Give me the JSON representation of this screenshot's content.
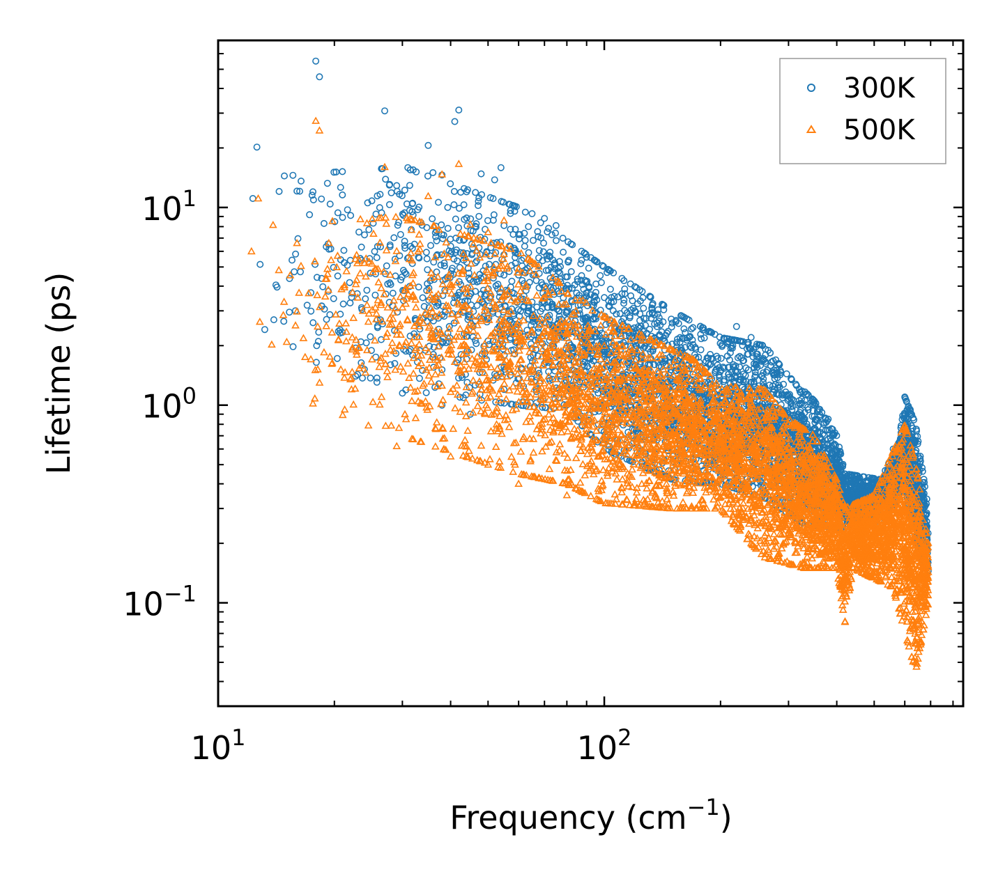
{
  "chart_data": {
    "type": "scatter",
    "title": "",
    "xlabel": "Frequency (cm",
    "xlabel_sup": "−1",
    "xlabel_end": ")",
    "ylabel": "Lifetime (ps)",
    "xscale": "log",
    "yscale": "log",
    "xlim": [
      10,
      850
    ],
    "ylim": [
      0.03,
      70
    ],
    "x_ticks": [
      {
        "value": 10,
        "base": "10",
        "exp": "1"
      },
      {
        "value": 100,
        "base": "10",
        "exp": "2"
      }
    ],
    "y_ticks": [
      {
        "value": 0.1,
        "base": "10",
        "exp": "−1"
      },
      {
        "value": 1,
        "base": "10",
        "exp": "0"
      },
      {
        "value": 10,
        "base": "10",
        "exp": "1"
      }
    ],
    "legend_position": "top-right",
    "series": [
      {
        "name": "300K",
        "marker": "circle",
        "color": "#1f77b4",
        "sample_points": [
          [
            12.3,
            11.1
          ],
          [
            12.6,
            20.2
          ],
          [
            16.0,
            12.1
          ],
          [
            16.4,
            13.6
          ],
          [
            17.6,
            12.0
          ],
          [
            17.9,
            55.0
          ],
          [
            18.3,
            45.8
          ],
          [
            18.8,
            8.3
          ],
          [
            19.5,
            10.4
          ],
          [
            21,
            8.9
          ],
          [
            17.0,
            3.2
          ],
          [
            18.0,
            2.0
          ],
          [
            22,
            5.4
          ],
          [
            23.5,
            6.3
          ],
          [
            25,
            10.8
          ],
          [
            27,
            30.8
          ],
          [
            26.5,
            9.4
          ],
          [
            29,
            12.9
          ],
          [
            31,
            15.9
          ],
          [
            32,
            15.5
          ],
          [
            35,
            20.6
          ],
          [
            36,
            15.0
          ],
          [
            38,
            14.6
          ],
          [
            41,
            27.2
          ],
          [
            42,
            31.1
          ],
          [
            44,
            12.0
          ],
          [
            48,
            14.8
          ],
          [
            52,
            13.8
          ],
          [
            54,
            15.9
          ],
          [
            55,
            8.1
          ],
          [
            60,
            7.3
          ],
          [
            65,
            9.3
          ],
          [
            70,
            8.8
          ],
          [
            75,
            8.1
          ],
          [
            90,
            5.6
          ],
          [
            100,
            3.5
          ],
          [
            120,
            3.0
          ],
          [
            150,
            2.6
          ],
          [
            160,
            2.8
          ],
          [
            180,
            2.4
          ],
          [
            210,
            2.1
          ],
          [
            220,
            2.5
          ],
          [
            240,
            2.2
          ],
          [
            280,
            1.5
          ],
          [
            320,
            1.2
          ],
          [
            380,
            0.85
          ],
          [
            420,
            0.42
          ],
          [
            500,
            0.38
          ],
          [
            560,
            0.6
          ],
          [
            600,
            1.1
          ],
          [
            620,
            0.95
          ],
          [
            650,
            0.55
          ],
          [
            680,
            0.25
          ],
          [
            30,
            1.15
          ],
          [
            38,
            1.0
          ],
          [
            45,
            0.9
          ],
          [
            55,
            1.2
          ],
          [
            65,
            1.5
          ],
          [
            80,
            1.8
          ],
          [
            110,
            1.9
          ],
          [
            140,
            1.7
          ]
        ]
      },
      {
        "name": "500K",
        "marker": "triangle",
        "color": "#ff7f0e",
        "sample_points": [
          [
            12.2,
            6.0
          ],
          [
            12.7,
            11.1
          ],
          [
            16.0,
            6.6
          ],
          [
            16.2,
            3.7
          ],
          [
            16.8,
            1.75
          ],
          [
            17.9,
            27.4
          ],
          [
            18.3,
            24.5
          ],
          [
            17.8,
            1.08
          ],
          [
            18.8,
            1.85
          ],
          [
            20.5,
            2.15
          ],
          [
            22,
            1.35
          ],
          [
            23,
            3.5
          ],
          [
            25,
            5.2
          ],
          [
            26.5,
            1.1
          ],
          [
            27,
            16.0
          ],
          [
            29,
            0.62
          ],
          [
            31,
            8.6
          ],
          [
            35,
            11.4
          ],
          [
            38,
            14.7
          ],
          [
            42,
            16.6
          ],
          [
            45,
            8.2
          ],
          [
            50,
            7.5
          ],
          [
            55,
            8.6
          ],
          [
            60,
            4.9
          ],
          [
            70,
            3.5
          ],
          [
            80,
            2.3
          ],
          [
            100,
            2.0
          ],
          [
            130,
            1.5
          ],
          [
            160,
            1.55
          ],
          [
            200,
            1.0
          ],
          [
            250,
            0.95
          ],
          [
            300,
            0.8
          ],
          [
            350,
            0.55
          ],
          [
            400,
            0.25
          ],
          [
            420,
            0.08
          ],
          [
            500,
            0.2
          ],
          [
            600,
            0.75
          ],
          [
            640,
            0.05
          ],
          [
            680,
            0.2
          ],
          [
            40,
            0.55
          ],
          [
            50,
            0.5
          ],
          [
            60,
            0.4
          ],
          [
            80,
            0.35
          ],
          [
            120,
            0.32
          ],
          [
            180,
            0.3
          ],
          [
            240,
            0.2
          ],
          [
            330,
            0.15
          ]
        ]
      }
    ]
  }
}
